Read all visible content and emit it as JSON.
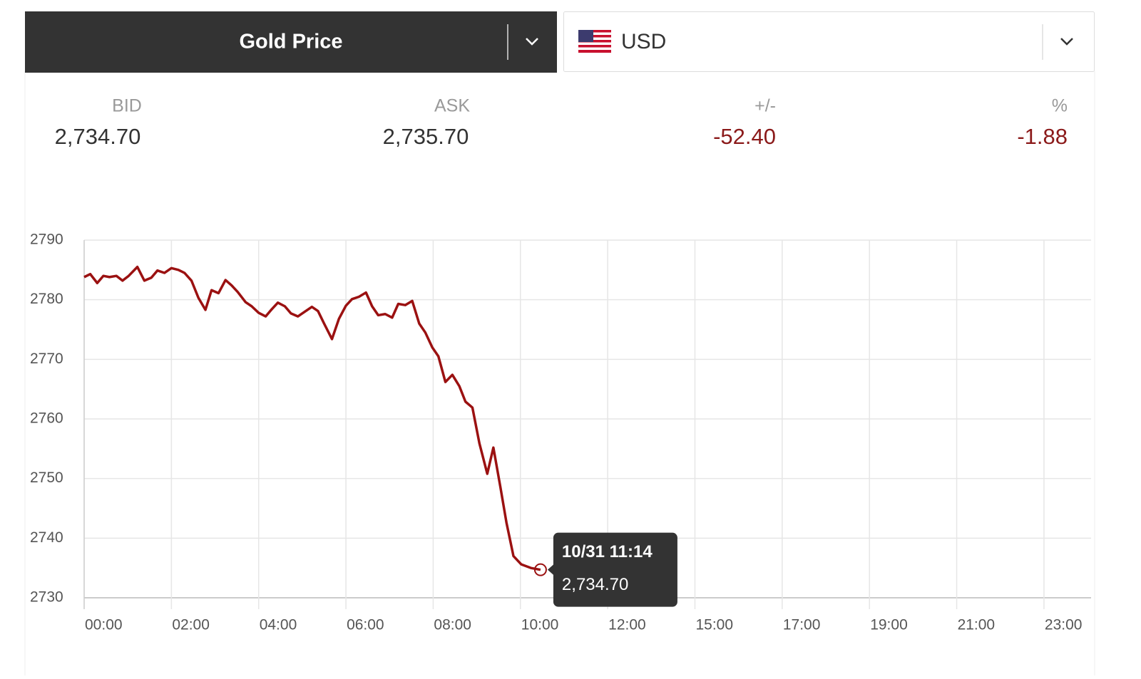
{
  "header": {
    "title": "Gold Price",
    "currency": "USD"
  },
  "quote": {
    "bid_label": "BID",
    "bid": "2,734.70",
    "ask_label": "ASK",
    "ask": "2,735.70",
    "change_label": "+/-",
    "change": "-52.40",
    "percent_label": "%",
    "percent": "-1.88"
  },
  "chart_data": {
    "type": "line",
    "color": "#9b1111",
    "grid": true,
    "x": [
      0,
      0.07,
      0.15,
      0.22,
      0.29,
      0.37,
      0.44,
      0.51,
      0.61,
      0.69,
      0.77,
      0.84,
      0.92,
      1.0,
      1.08,
      1.15,
      1.23,
      1.31,
      1.39,
      1.46,
      1.54,
      1.62,
      1.69,
      1.76,
      1.85,
      1.92,
      2.0,
      2.08,
      2.15,
      2.22,
      2.3,
      2.37,
      2.45,
      2.52,
      2.61,
      2.68,
      2.75,
      2.84,
      2.92,
      3.0,
      3.07,
      3.15,
      3.23,
      3.3,
      3.37,
      3.45,
      3.53,
      3.6,
      3.68,
      3.76,
      3.84,
      3.91,
      3.99,
      4.06,
      4.14,
      4.22,
      4.3,
      4.37,
      4.45,
      4.53,
      4.62,
      4.69,
      4.77,
      4.84,
      4.92,
      5.01,
      5.12,
      5.23
    ],
    "values": [
      2783.8,
      2784.3,
      2782.8,
      2784.0,
      2783.8,
      2784.0,
      2783.2,
      2784.0,
      2785.5,
      2783.2,
      2783.7,
      2784.9,
      2784.5,
      2785.3,
      2785.0,
      2784.5,
      2783.2,
      2780.3,
      2778.3,
      2781.6,
      2781.1,
      2783.3,
      2782.4,
      2781.3,
      2779.6,
      2778.9,
      2777.8,
      2777.2,
      2778.4,
      2779.5,
      2778.9,
      2777.7,
      2777.2,
      2777.9,
      2778.8,
      2778.1,
      2776.0,
      2773.4,
      2776.8,
      2779.0,
      2780.1,
      2780.5,
      2781.2,
      2778.9,
      2777.4,
      2777.6,
      2777.0,
      2779.3,
      2779.1,
      2779.8,
      2776.0,
      2774.5,
      2772.0,
      2770.5,
      2766.2,
      2767.4,
      2765.5,
      2762.9,
      2761.9,
      2755.9,
      2750.8,
      2755.2,
      2748.6,
      2742.6,
      2737.0,
      2735.6,
      2735.0,
      2734.7
    ],
    "xlim": [
      0,
      11.54
    ],
    "xticks": [
      {
        "value": 0,
        "label": "00:00"
      },
      {
        "value": 1,
        "label": "02:00"
      },
      {
        "value": 2,
        "label": "04:00"
      },
      {
        "value": 3,
        "label": "06:00"
      },
      {
        "value": 4,
        "label": "08:00"
      },
      {
        "value": 5,
        "label": "10:00"
      },
      {
        "value": 6,
        "label": "12:00"
      },
      {
        "value": 7,
        "label": "15:00"
      },
      {
        "value": 8,
        "label": "17:00"
      },
      {
        "value": 9,
        "label": "19:00"
      },
      {
        "value": 10,
        "label": "21:00"
      },
      {
        "value": 11,
        "label": "23:00"
      }
    ],
    "ylim": [
      2730,
      2790
    ],
    "yticks": [
      2730,
      2740,
      2750,
      2760,
      2770,
      2780,
      2790
    ],
    "tooltip": {
      "time": "10/31 11:14",
      "value": "2,734.70"
    }
  }
}
